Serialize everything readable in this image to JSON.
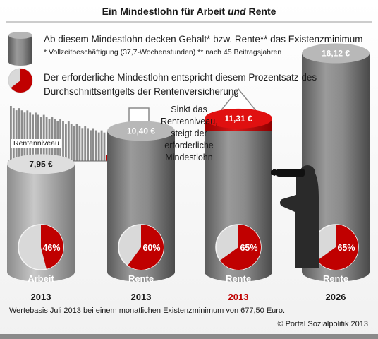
{
  "title": {
    "before": "Ein Mindestlohn für Arbeit ",
    "italic": "und",
    "after": " Rente"
  },
  "legend": {
    "cylinder_text": "Ab diesem Mindestlohn decken Gehalt* bzw. Rente** das Existenzminimum",
    "cylinder_note": "* Vollzeitbeschäftigung (37,7-Wochenstunden) ** nach 45 Beitragsjahren",
    "pie_text": "Der erforderliche Mindestlohn entspricht diesem Prozentsatz des Durchschnittsentgelts der Rentenversicherung"
  },
  "mini_chart": {
    "label": "Rentenniveau"
  },
  "annotation": "Sinkt das Rentenniveau, steigt der erforderliche Mindestlohn",
  "colors": {
    "cylinder_gray": "#7d7d7d",
    "accent_red": "#c00000",
    "pie_gray": "#d9d9d9",
    "text": "#1a1a1a"
  },
  "chart_data": {
    "type": "bar",
    "categories": [
      "Arbeit 2013",
      "Rente 2013",
      "Rente 2013",
      "Rente 2026"
    ],
    "columns": [
      {
        "label": "Arbeit",
        "year": "2013",
        "wage_label": "7,95 €",
        "wage": 7.95,
        "percent_label": "46%",
        "percent": 46,
        "highlight": false
      },
      {
        "label": "Rente",
        "year": "2013",
        "wage_label": "10,40 €",
        "wage": 10.4,
        "percent_label": "60%",
        "percent": 60,
        "highlight": false
      },
      {
        "label": "Rente",
        "year": "2013",
        "wage_label": "11,31 €",
        "wage": 11.31,
        "percent_label": "65%",
        "percent": 65,
        "highlight": true
      },
      {
        "label": "Rente",
        "year": "2026",
        "wage_label": "16,12 €",
        "wage": 16.12,
        "percent_label": "65%",
        "percent": 65,
        "highlight": false
      }
    ]
  },
  "footer": {
    "note": "Wertebasis Juli 2013 bei einem monatlichen Existenzminimum von 677,50 Euro.",
    "copyright": "© Portal Sozialpolitik 2013"
  }
}
